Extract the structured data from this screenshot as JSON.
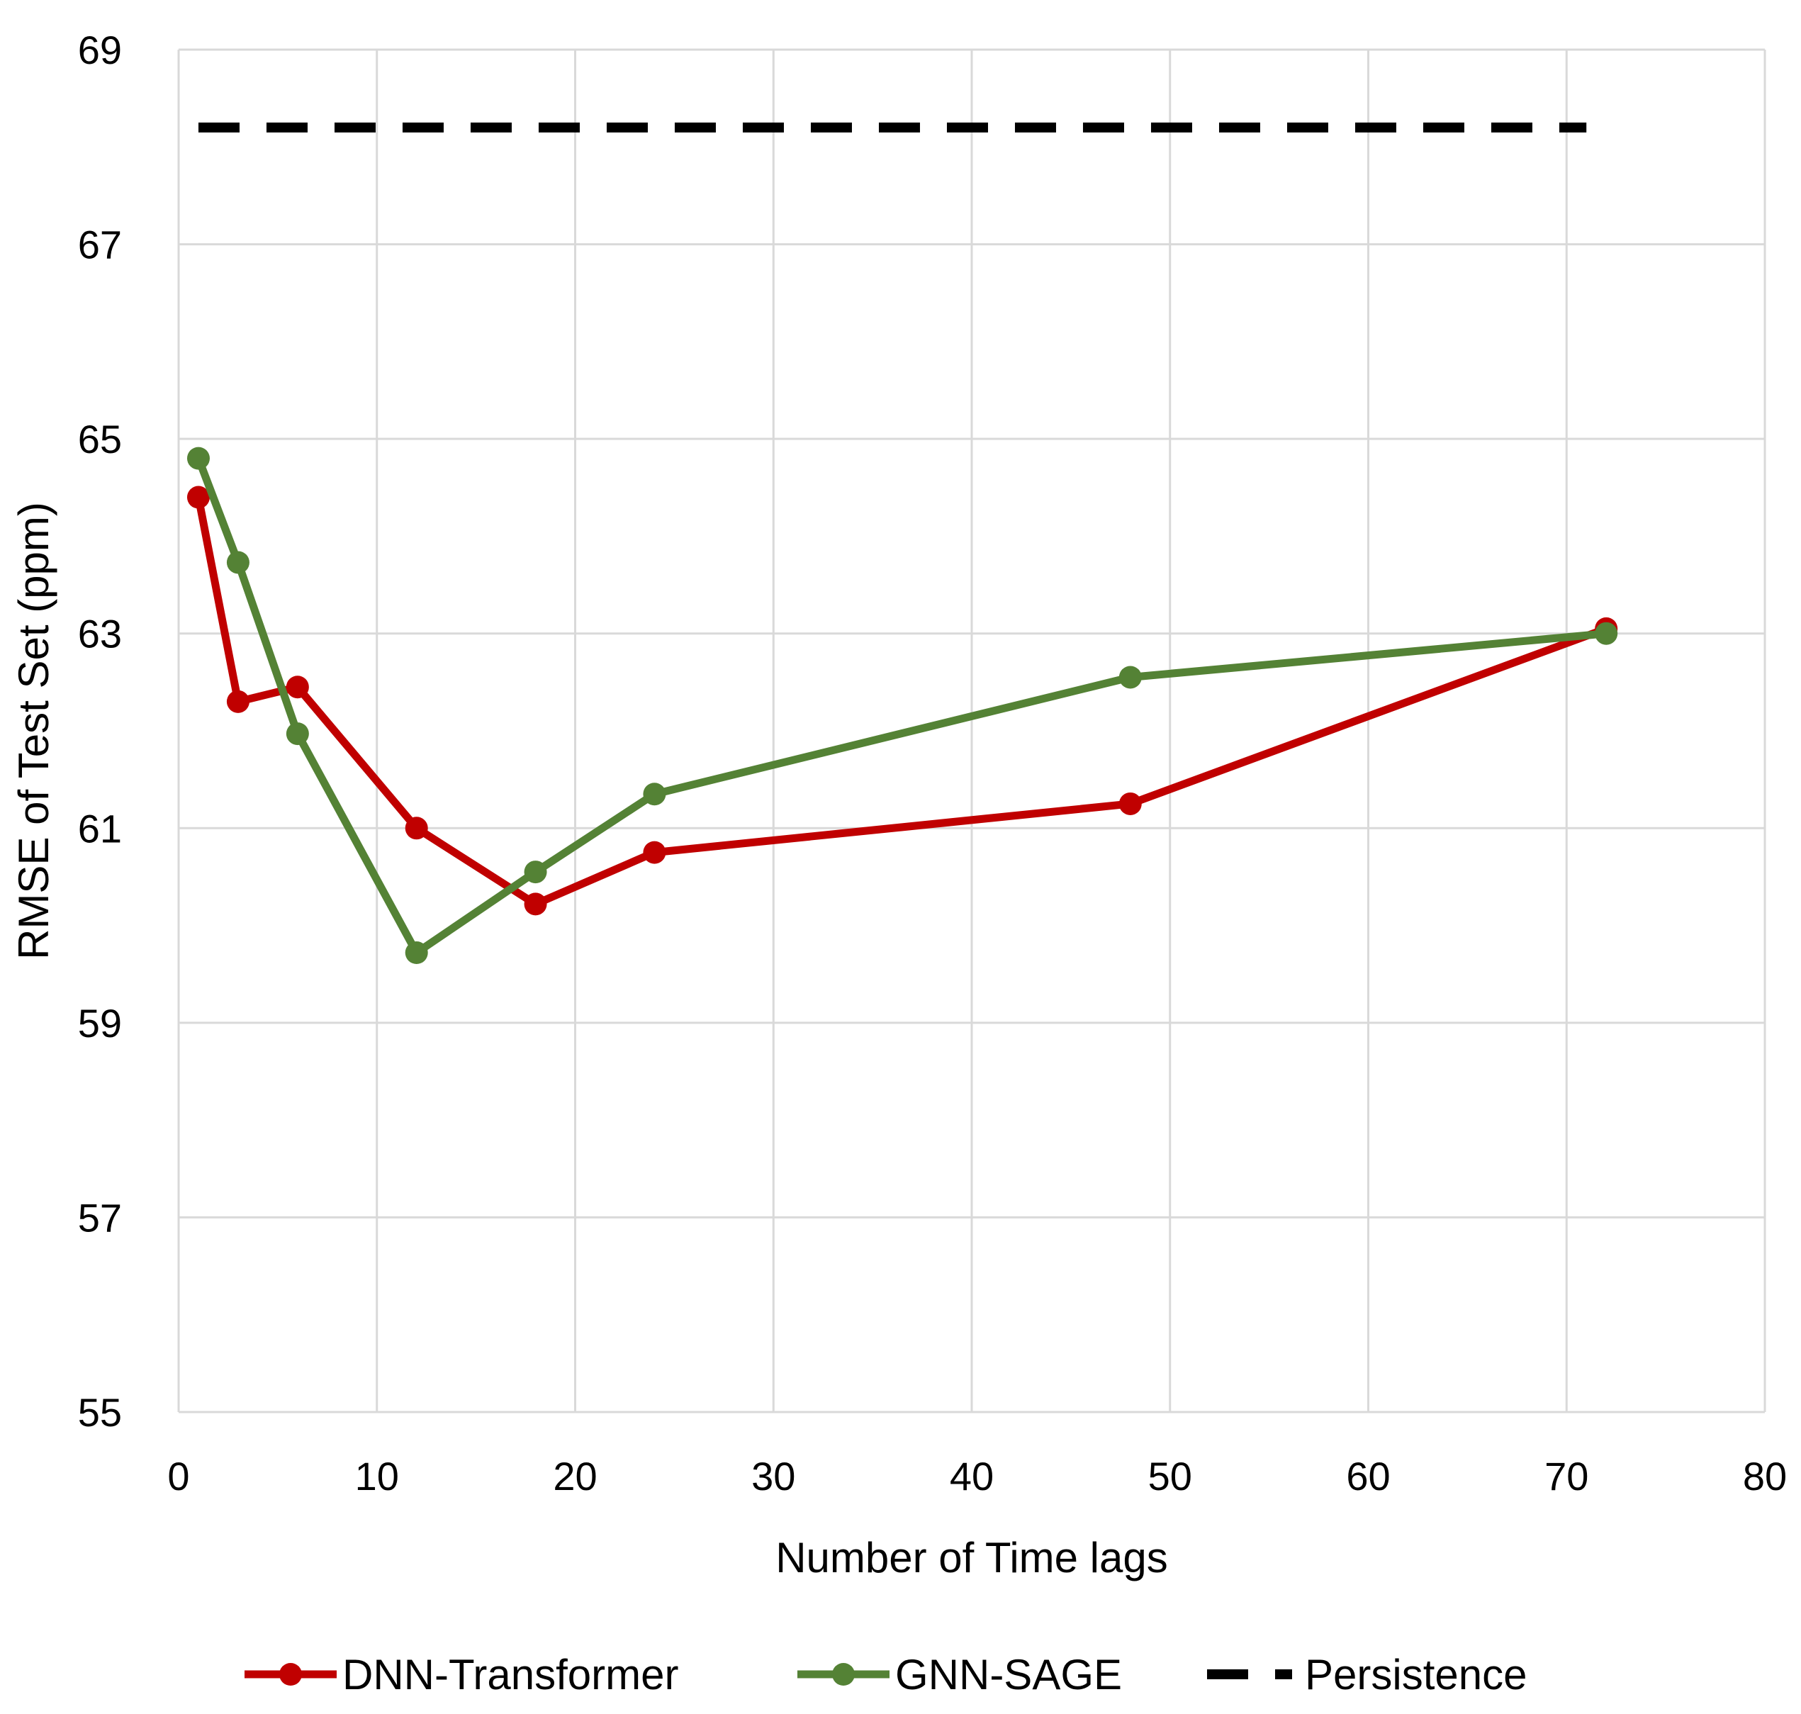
{
  "chart_data": {
    "type": "line",
    "title": "",
    "xlabel": "Number of Time lags",
    "ylabel": "RMSE of Test Set (ppm)",
    "xlim": [
      0,
      80
    ],
    "ylim": [
      55,
      69
    ],
    "x_ticks": [
      0,
      10,
      20,
      30,
      40,
      50,
      60,
      70,
      80
    ],
    "y_ticks": [
      55,
      57,
      59,
      61,
      63,
      65,
      67,
      69
    ],
    "grid": true,
    "legend_position": "bottom",
    "series": [
      {
        "name": "DNN-Transformer",
        "color": "#c00000",
        "style": "solid-with-markers",
        "x": [
          1,
          3,
          6,
          12,
          18,
          24,
          48,
          72
        ],
        "y": [
          64.4,
          62.3,
          62.45,
          61.0,
          60.22,
          60.75,
          61.25,
          63.05
        ]
      },
      {
        "name": "GNN-SAGE",
        "color": "#548235",
        "style": "solid-with-markers",
        "x": [
          1,
          3,
          6,
          12,
          18,
          24,
          48,
          72
        ],
        "y": [
          64.8,
          63.73,
          61.97,
          59.72,
          60.55,
          61.35,
          62.55,
          63.0
        ]
      },
      {
        "name": "Persistence",
        "color": "#000000",
        "style": "dashed",
        "x": [
          1,
          71
        ],
        "y": [
          68.2,
          68.2
        ]
      }
    ]
  }
}
